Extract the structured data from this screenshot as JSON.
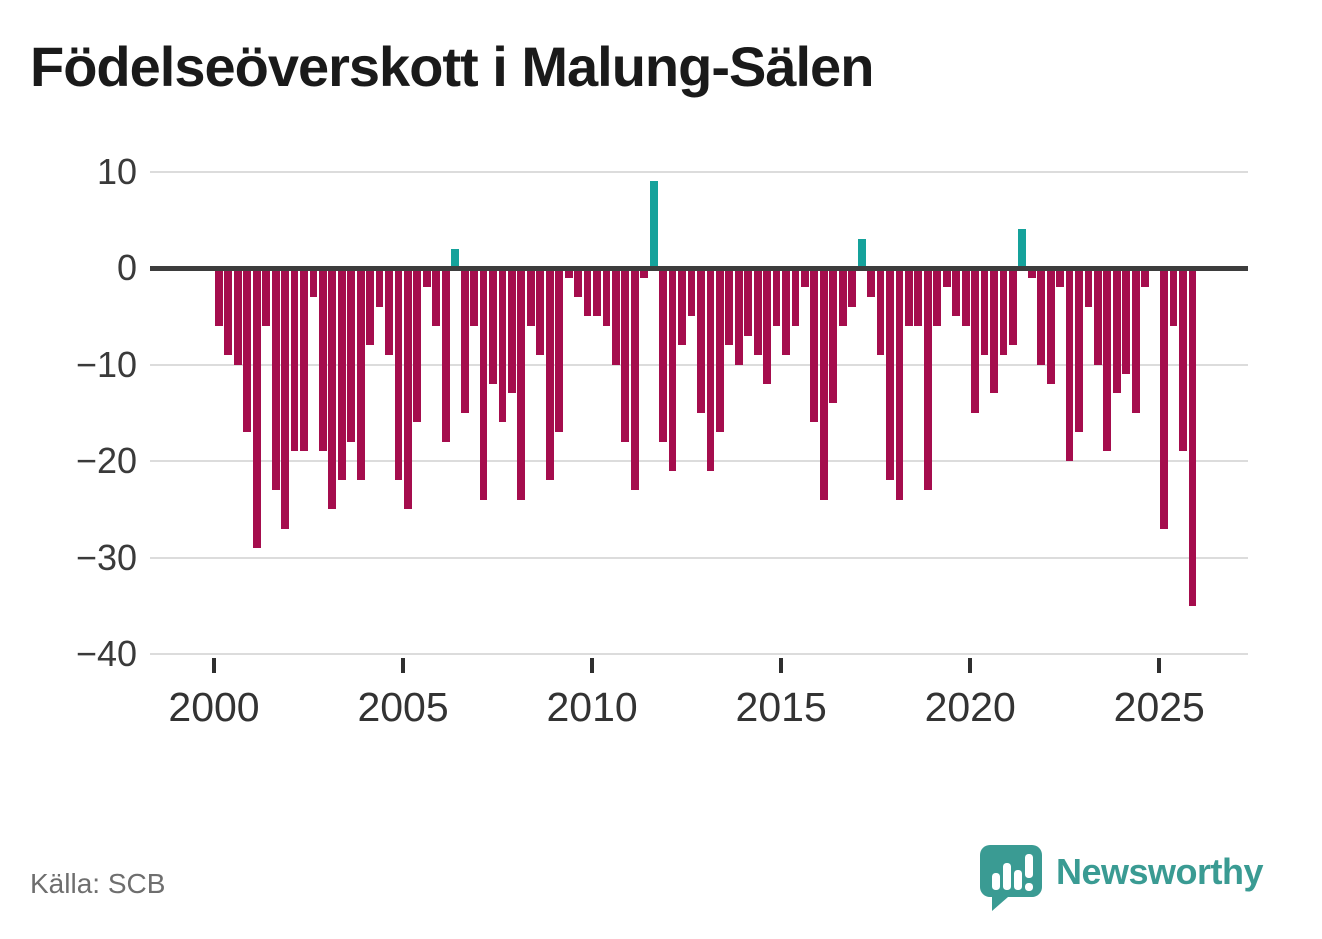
{
  "title": "Födelseöverskott i Malung-Sälen",
  "source": "Källa: SCB",
  "branding": {
    "name": "Newsworthy",
    "icon": "newsworthy-speech-bubble-bars-icon"
  },
  "colors": {
    "bar_negative": "#a50d4d",
    "bar_positive": "#15a29b",
    "zero_line": "#3d3d3d",
    "gridline": "#dcdcdc",
    "axis_text": "#3a3a3a",
    "title_text": "#1a1a1a",
    "source_text": "#6e6e6e",
    "brand_teal": "#3a9b93"
  },
  "chart_data": {
    "type": "bar",
    "title": "Födelseöverskott i Malung-Sälen",
    "xlabel": "",
    "ylabel": "",
    "ylim": [
      -40,
      10
    ],
    "grid": true,
    "legend": "none",
    "y_ticks": [
      10,
      0,
      -10,
      -20,
      -30,
      -40
    ],
    "y_tick_labels": [
      "10",
      "0",
      "−10",
      "−20",
      "−30",
      "−40"
    ],
    "x_tick_years": [
      2000,
      2005,
      2010,
      2015,
      2020,
      2025
    ],
    "x_tick_labels": [
      "2000",
      "2005",
      "2010",
      "2015",
      "2020",
      "2025"
    ],
    "period": "quarterly",
    "series_by_year": [
      {
        "year": 2000,
        "values": [
          -6,
          -9,
          -10,
          -17
        ]
      },
      {
        "year": 2001,
        "values": [
          -29,
          -6,
          -23,
          -27
        ]
      },
      {
        "year": 2002,
        "values": [
          -19,
          -19,
          -3,
          -19
        ]
      },
      {
        "year": 2003,
        "values": [
          -25,
          -22,
          -18,
          -22
        ]
      },
      {
        "year": 2004,
        "values": [
          -8,
          -4,
          -9,
          -22
        ]
      },
      {
        "year": 2005,
        "values": [
          -25,
          -16,
          -2,
          -6
        ]
      },
      {
        "year": 2006,
        "values": [
          -18,
          2,
          -15,
          -6
        ]
      },
      {
        "year": 2007,
        "values": [
          -24,
          -12,
          -16,
          -13
        ]
      },
      {
        "year": 2008,
        "values": [
          -24,
          -6,
          -9,
          -22
        ]
      },
      {
        "year": 2009,
        "values": [
          -17,
          -1,
          -3,
          -5
        ]
      },
      {
        "year": 2010,
        "values": [
          -5,
          -6,
          -10,
          -18
        ]
      },
      {
        "year": 2011,
        "values": [
          -23,
          -1,
          9,
          -18
        ]
      },
      {
        "year": 2012,
        "values": [
          -21,
          -8,
          -5,
          -15
        ]
      },
      {
        "year": 2013,
        "values": [
          -21,
          -17,
          -8,
          -10
        ]
      },
      {
        "year": 2014,
        "values": [
          -7,
          -9,
          -12,
          -6
        ]
      },
      {
        "year": 2015,
        "values": [
          -9,
          -6,
          -2,
          -16
        ]
      },
      {
        "year": 2016,
        "values": [
          -24,
          -14,
          -6,
          -4
        ]
      },
      {
        "year": 2017,
        "values": [
          3,
          -3,
          -9,
          -22
        ]
      },
      {
        "year": 2018,
        "values": [
          -24,
          -6,
          -6,
          -23
        ]
      },
      {
        "year": 2019,
        "values": [
          -6,
          -2,
          -5,
          -6
        ]
      },
      {
        "year": 2020,
        "values": [
          -15,
          -9,
          -13,
          -9
        ]
      },
      {
        "year": 2021,
        "values": [
          -8,
          4,
          -1,
          -10
        ]
      },
      {
        "year": 2022,
        "values": [
          -12,
          -2,
          -20,
          -17
        ]
      },
      {
        "year": 2023,
        "values": [
          -4,
          -10,
          -19,
          -13
        ]
      },
      {
        "year": 2024,
        "values": [
          -11,
          -15,
          -2,
          0
        ]
      },
      {
        "year": 2025,
        "values": [
          -27,
          -6,
          -19,
          -35
        ]
      }
    ]
  }
}
